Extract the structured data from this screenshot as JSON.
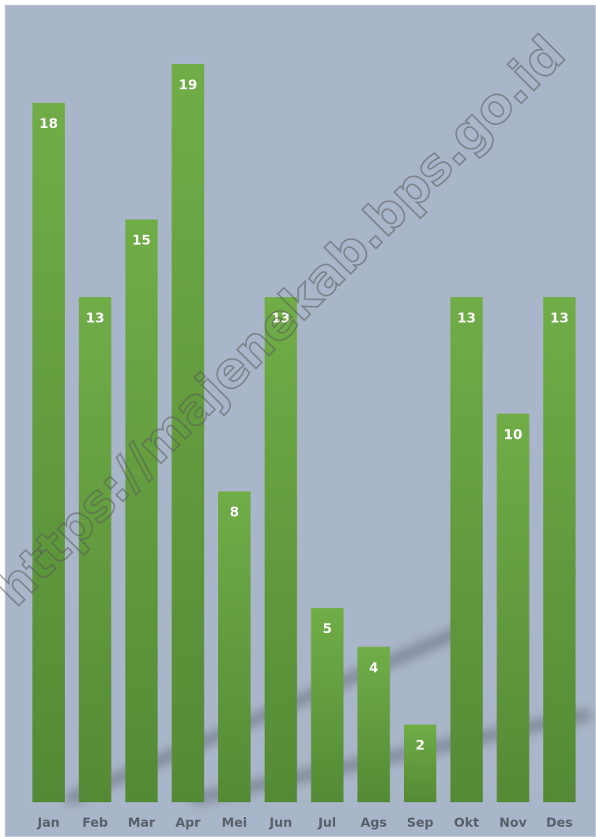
{
  "chart_data": {
    "type": "bar",
    "categories": [
      "Jan",
      "Feb",
      "Mar",
      "Apr",
      "Mei",
      "Jun",
      "Jul",
      "Ags",
      "Sep",
      "Okt",
      "Nov",
      "Des"
    ],
    "values": [
      18,
      13,
      15,
      19,
      8,
      13,
      5,
      4,
      2,
      13,
      10,
      13
    ],
    "title": "",
    "xlabel": "",
    "ylabel": "",
    "ylim": [
      0,
      19
    ],
    "grid": false,
    "legend": "none",
    "data_labels": true,
    "colors": {
      "background": "#a9b5c8",
      "bar_light": "#70ad47",
      "bar_dark": "#548a35",
      "label": "#ffffff",
      "tick_label": "#59606b"
    }
  },
  "watermark": "https://majenekab.bps.go.id"
}
